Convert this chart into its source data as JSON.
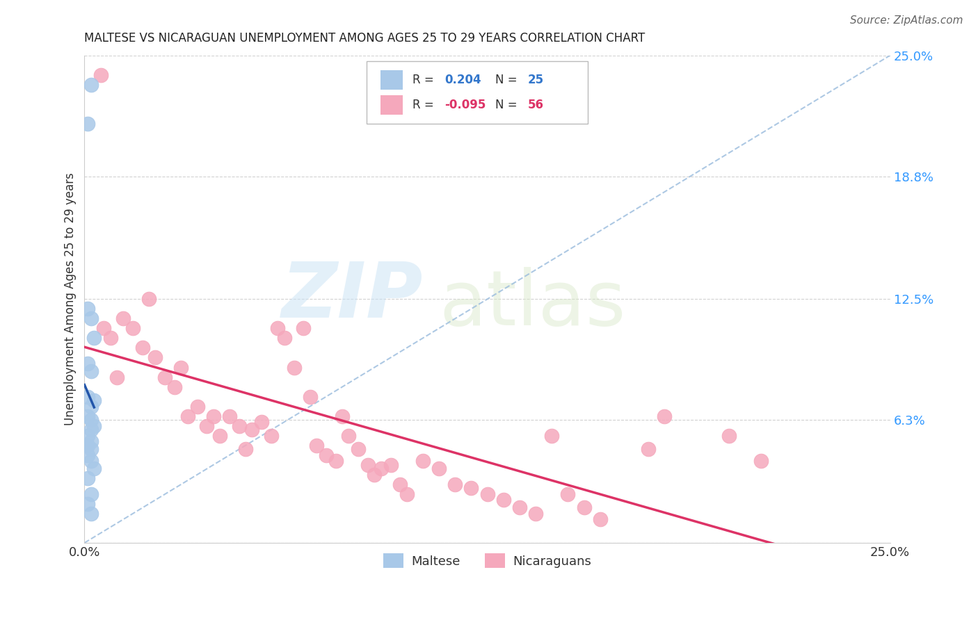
{
  "title": "MALTESE VS NICARAGUAN UNEMPLOYMENT AMONG AGES 25 TO 29 YEARS CORRELATION CHART",
  "source": "Source: ZipAtlas.com",
  "ylabel": "Unemployment Among Ages 25 to 29 years",
  "xlim": [
    0,
    0.25
  ],
  "ylim": [
    0,
    0.25
  ],
  "maltese_R": "0.204",
  "maltese_N": "25",
  "nicaraguan_R": "-0.095",
  "nicaraguan_N": "56",
  "maltese_color": "#a8c8e8",
  "nicaraguan_color": "#f5a8bc",
  "maltese_line_color": "#2255aa",
  "nicaraguan_line_color": "#dd3366",
  "diag_color": "#99bbdd",
  "grid_color": "#cccccc",
  "maltese_x": [
    0.001,
    0.002,
    0.001,
    0.002,
    0.003,
    0.001,
    0.002,
    0.001,
    0.003,
    0.002,
    0.001,
    0.002,
    0.003,
    0.002,
    0.001,
    0.002,
    0.001,
    0.002,
    0.001,
    0.002,
    0.003,
    0.001,
    0.002,
    0.001,
    0.002
  ],
  "maltese_y": [
    0.215,
    0.235,
    0.12,
    0.115,
    0.105,
    0.092,
    0.088,
    0.075,
    0.073,
    0.07,
    0.065,
    0.063,
    0.06,
    0.058,
    0.055,
    0.052,
    0.05,
    0.048,
    0.045,
    0.042,
    0.038,
    0.033,
    0.025,
    0.02,
    0.015
  ],
  "nicaraguan_x": [
    0.005,
    0.006,
    0.008,
    0.01,
    0.012,
    0.015,
    0.018,
    0.02,
    0.022,
    0.025,
    0.028,
    0.03,
    0.032,
    0.035,
    0.038,
    0.04,
    0.042,
    0.045,
    0.048,
    0.05,
    0.052,
    0.055,
    0.058,
    0.06,
    0.062,
    0.065,
    0.068,
    0.07,
    0.072,
    0.075,
    0.078,
    0.08,
    0.082,
    0.085,
    0.088,
    0.09,
    0.092,
    0.095,
    0.098,
    0.1,
    0.105,
    0.11,
    0.115,
    0.12,
    0.125,
    0.13,
    0.135,
    0.14,
    0.145,
    0.15,
    0.155,
    0.16,
    0.175,
    0.18,
    0.2,
    0.21
  ],
  "nicaraguan_y": [
    0.24,
    0.11,
    0.105,
    0.085,
    0.115,
    0.11,
    0.1,
    0.125,
    0.095,
    0.085,
    0.08,
    0.09,
    0.065,
    0.07,
    0.06,
    0.065,
    0.055,
    0.065,
    0.06,
    0.048,
    0.058,
    0.062,
    0.055,
    0.11,
    0.105,
    0.09,
    0.11,
    0.075,
    0.05,
    0.045,
    0.042,
    0.065,
    0.055,
    0.048,
    0.04,
    0.035,
    0.038,
    0.04,
    0.03,
    0.025,
    0.042,
    0.038,
    0.03,
    0.028,
    0.025,
    0.022,
    0.018,
    0.015,
    0.055,
    0.025,
    0.018,
    0.012,
    0.048,
    0.065,
    0.055,
    0.042
  ]
}
